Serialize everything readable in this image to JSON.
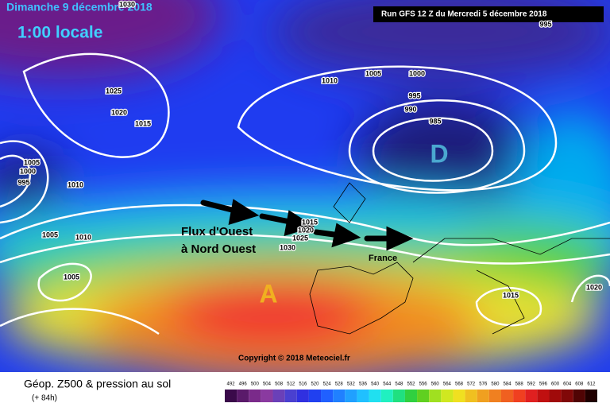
{
  "header": {
    "date": "Dimanche 9 décembre 2018",
    "time": "1:00 locale",
    "run": "Run GFS 12 Z du Mercredi 5 décembre 2018"
  },
  "annotations": {
    "flow_line1": "Flux d'Ouest",
    "flow_line2": "à Nord Ouest",
    "country": "France",
    "low": "D",
    "high": "A"
  },
  "copyright": "Copyright © 2018 Meteociel.fr",
  "legend": {
    "title": "Géop. Z500 & pression au sol",
    "lead": "(+ 84h)",
    "scale": [
      492,
      496,
      500,
      504,
      508,
      512,
      516,
      520,
      524,
      528,
      532,
      536,
      540,
      544,
      548,
      552,
      556,
      560,
      564,
      568,
      572,
      576,
      580,
      584,
      588,
      592,
      596,
      600,
      604,
      608,
      612
    ]
  },
  "isobars": [
    1030,
    1025,
    1020,
    1015,
    1010,
    1005,
    1000,
    995,
    990,
    985,
    995,
    1005,
    1000,
    995,
    1010,
    1005,
    1010,
    1005,
    1015,
    1020,
    1025,
    1030,
    1015,
    1020
  ]
}
